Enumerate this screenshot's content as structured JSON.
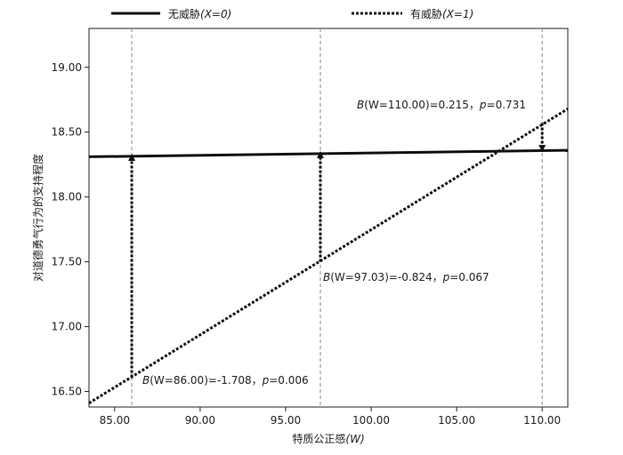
{
  "chart_data": {
    "type": "line",
    "xlabel_main": "特质公正感",
    "xlabel_var": "(W)",
    "ylabel": "对道德勇气行为的支持程度",
    "xlim": [
      83.5,
      111.5
    ],
    "ylim": [
      16.38,
      19.3
    ],
    "xticks": [
      85,
      90,
      95,
      100,
      105,
      110
    ],
    "xtick_labels": [
      "85.00",
      "90.00",
      "95.00",
      "100.00",
      "105.00",
      "110.00"
    ],
    "yticks": [
      16.5,
      17.0,
      17.5,
      18.0,
      18.5,
      19.0
    ],
    "ytick_labels": [
      "16.50",
      "17.00",
      "17.50",
      "18.00",
      "18.50",
      "19.00"
    ],
    "series": [
      {
        "name_main": "无威胁",
        "name_var": "(X=0)",
        "style": "solid",
        "points": [
          [
            83.5,
            18.31
          ],
          [
            111.5,
            18.36
          ]
        ]
      },
      {
        "name_main": "有威胁",
        "name_var": "(X=1)",
        "style": "dotted",
        "points": [
          [
            83.5,
            16.41
          ],
          [
            111.5,
            18.68
          ]
        ]
      }
    ],
    "reference_lines_x": [
      86.0,
      97.03,
      110.0
    ],
    "arrows": [
      {
        "x": 86.0,
        "from": 16.61,
        "to": 18.32
      },
      {
        "x": 97.03,
        "from": 17.5,
        "to": 18.34
      },
      {
        "x": 110.0,
        "from": 18.57,
        "to": 18.36
      }
    ],
    "annotations": [
      {
        "b": "B",
        "text": "(W=86.00)=-1.708，",
        "p": "p",
        "pval": "=0.006"
      },
      {
        "b": "B",
        "text": "(W=97.03)=-0.824，",
        "p": "p",
        "pval": "=0.067"
      },
      {
        "b": "B",
        "text": "(W=110.00)=0.215，",
        "p": "p",
        "pval": "=0.731"
      }
    ]
  }
}
